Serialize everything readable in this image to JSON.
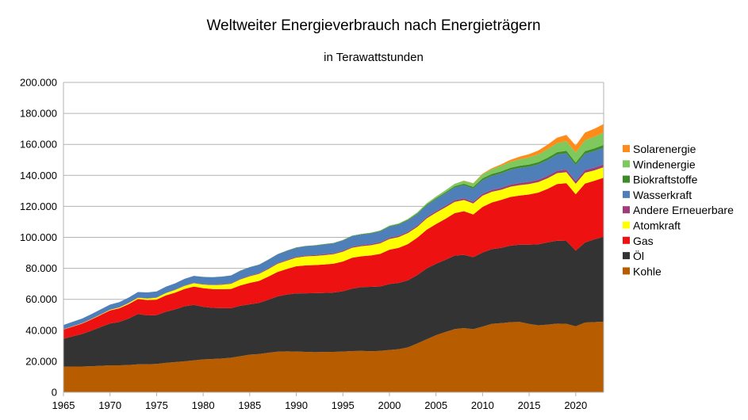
{
  "chart_data": {
    "type": "area",
    "stacked": true,
    "title": "Weltweiter Energieverbrauch nach Energieträgern",
    "subtitle": "in Terawattstunden",
    "xlabel": "",
    "ylabel": "",
    "xlim": [
      1965,
      2023
    ],
    "ylim": [
      0,
      200000
    ],
    "y_ticks": [
      "0",
      "20.000",
      "40.000",
      "60.000",
      "80.000",
      "100.000",
      "120.000",
      "140.000",
      "160.000",
      "180.000",
      "200.000"
    ],
    "x_ticks": [
      "1965",
      "1970",
      "1975",
      "1980",
      "1985",
      "1990",
      "1995",
      "2000",
      "2005",
      "2010",
      "2015",
      "2020"
    ],
    "x_tick_values": [
      1965,
      1970,
      1975,
      1980,
      1985,
      1990,
      1995,
      2000,
      2005,
      2010,
      2015,
      2020
    ],
    "grid": true,
    "legend_position": "right",
    "x": [
      1965,
      1966,
      1967,
      1968,
      1969,
      1970,
      1971,
      1972,
      1973,
      1974,
      1975,
      1976,
      1977,
      1978,
      1979,
      1980,
      1981,
      1982,
      1983,
      1984,
      1985,
      1986,
      1987,
      1988,
      1989,
      1990,
      1991,
      1992,
      1993,
      1994,
      1995,
      1996,
      1997,
      1998,
      1999,
      2000,
      2001,
      2002,
      2003,
      2004,
      2005,
      2006,
      2007,
      2008,
      2009,
      2010,
      2011,
      2012,
      2013,
      2014,
      2015,
      2016,
      2017,
      2018,
      2019,
      2020,
      2021,
      2022,
      2023
    ],
    "series": [
      {
        "name": "Kohle",
        "color": "#b85c00",
        "values": [
          16500,
          16600,
          16600,
          16800,
          17100,
          17400,
          17400,
          17600,
          18000,
          18100,
          18300,
          19000,
          19500,
          20000,
          20600,
          21200,
          21500,
          21800,
          22300,
          23300,
          24300,
          24700,
          25500,
          26200,
          26400,
          26300,
          26100,
          25900,
          26000,
          26100,
          26300,
          26600,
          26700,
          26500,
          26700,
          27300,
          27800,
          29000,
          31500,
          34200,
          36800,
          38900,
          40800,
          41400,
          40700,
          42400,
          44200,
          44600,
          45300,
          45400,
          44100,
          43200,
          43700,
          44300,
          44200,
          42600,
          45000,
          45300,
          45600
        ]
      },
      {
        "name": "Öl",
        "color": "#333333",
        "values": [
          18000,
          19500,
          21000,
          23000,
          25000,
          27000,
          28000,
          30000,
          32500,
          31500,
          31500,
          33000,
          34000,
          35500,
          35800,
          34000,
          33000,
          32500,
          32000,
          32500,
          32500,
          33000,
          34200,
          35700,
          36700,
          37500,
          37800,
          38100,
          38100,
          38300,
          38900,
          40300,
          41200,
          41500,
          41600,
          42600,
          42800,
          43300,
          44200,
          45700,
          46100,
          46600,
          47400,
          47300,
          46500,
          47800,
          48200,
          48600,
          49300,
          49900,
          51200,
          52300,
          53100,
          53500,
          53500,
          48800,
          51700,
          53400,
          54800
        ]
      },
      {
        "name": "Gas",
        "color": "#ee1111",
        "values": [
          6000,
          6300,
          6700,
          7200,
          7800,
          8400,
          8800,
          9300,
          9700,
          9900,
          10000,
          10500,
          10800,
          11200,
          11800,
          12000,
          12100,
          12200,
          12400,
          13200,
          13800,
          14200,
          15000,
          15800,
          16500,
          17500,
          18000,
          18100,
          18400,
          18600,
          19200,
          19900,
          19900,
          20300,
          21000,
          22100,
          22600,
          23400,
          24100,
          25000,
          25700,
          26400,
          27400,
          28200,
          27600,
          29400,
          30100,
          31000,
          31500,
          31700,
          32400,
          33400,
          34500,
          36600,
          37300,
          36400,
          38000,
          37800,
          38100
        ]
      },
      {
        "name": "Atomkraft",
        "color": "#ffff00",
        "values": [
          100,
          150,
          200,
          250,
          300,
          400,
          500,
          650,
          800,
          1000,
          1250,
          1500,
          1750,
          2000,
          2200,
          2300,
          2600,
          2900,
          3300,
          3800,
          4300,
          4500,
          4800,
          5200,
          5400,
          5600,
          5800,
          5900,
          6000,
          6100,
          6300,
          6500,
          6500,
          6600,
          6800,
          6900,
          7000,
          7100,
          7000,
          7300,
          7300,
          7400,
          7300,
          7200,
          7100,
          7300,
          6900,
          6500,
          6600,
          6700,
          6700,
          6800,
          6900,
          7000,
          7100,
          6800,
          7000,
          6700,
          6800
        ]
      },
      {
        "name": "Andere Erneuerbare",
        "color": "#a03c78",
        "values": [
          100,
          100,
          100,
          100,
          100,
          100,
          100,
          100,
          100,
          150,
          150,
          150,
          200,
          200,
          200,
          250,
          250,
          300,
          300,
          350,
          400,
          400,
          450,
          450,
          500,
          500,
          550,
          550,
          600,
          600,
          650,
          650,
          700,
          700,
          750,
          800,
          800,
          850,
          900,
          900,
          950,
          1000,
          1050,
          1100,
          1150,
          1200,
          1250,
          1300,
          1350,
          1400,
          1450,
          1500,
          1550,
          1600,
          1650,
          1700,
          1750,
          1800,
          1850
        ]
      },
      {
        "name": "Wasserkraft",
        "color": "#4f7fb8",
        "values": [
          2700,
          2850,
          3000,
          3100,
          3200,
          3300,
          3400,
          3500,
          3600,
          3800,
          3900,
          4000,
          4100,
          4300,
          4500,
          4700,
          4800,
          4900,
          5100,
          5300,
          5400,
          5500,
          5600,
          5700,
          5800,
          5900,
          6000,
          6100,
          6300,
          6400,
          6600,
          6800,
          6800,
          6900,
          7000,
          7200,
          7200,
          7300,
          7300,
          7500,
          7800,
          8000,
          8200,
          8400,
          8400,
          8800,
          9000,
          9300,
          9500,
          9700,
          9700,
          9900,
          10100,
          10400,
          10500,
          10400,
          10500,
          10600,
          10600
        ]
      },
      {
        "name": "Biokraftstoffe",
        "color": "#3c8a28",
        "values": [
          0,
          0,
          0,
          0,
          0,
          0,
          0,
          0,
          0,
          0,
          0,
          0,
          0,
          0,
          0,
          50,
          60,
          70,
          80,
          100,
          120,
          130,
          150,
          170,
          180,
          200,
          200,
          220,
          240,
          260,
          280,
          300,
          320,
          350,
          380,
          400,
          450,
          500,
          550,
          600,
          650,
          750,
          850,
          1000,
          1100,
          1200,
          1250,
          1300,
          1350,
          1400,
          1450,
          1500,
          1550,
          1600,
          1650,
          1600,
          1700,
          1800,
          1900
        ]
      },
      {
        "name": "Windenergie",
        "color": "#7ec85e",
        "values": [
          0,
          0,
          0,
          0,
          0,
          0,
          0,
          0,
          0,
          0,
          0,
          0,
          0,
          0,
          0,
          0,
          0,
          0,
          0,
          0,
          0,
          0,
          0,
          0,
          0,
          20,
          30,
          40,
          50,
          60,
          80,
          100,
          120,
          150,
          200,
          300,
          380,
          500,
          620,
          800,
          1000,
          1250,
          1500,
          1900,
          2250,
          2650,
          3100,
          3600,
          3850,
          4200,
          4600,
          5000,
          5500,
          5800,
          6200,
          6500,
          7000,
          7500,
          8000
        ]
      },
      {
        "name": "Solarenergie",
        "color": "#ff8c1a",
        "values": [
          0,
          0,
          0,
          0,
          0,
          0,
          0,
          0,
          0,
          0,
          0,
          0,
          0,
          0,
          0,
          0,
          0,
          0,
          0,
          0,
          0,
          0,
          0,
          0,
          0,
          0,
          0,
          0,
          0,
          0,
          0,
          0,
          0,
          0,
          0,
          0,
          0,
          0,
          0,
          0,
          20,
          40,
          60,
          120,
          200,
          350,
          600,
          950,
          1300,
          1700,
          2100,
          2500,
          3000,
          3500,
          4000,
          4500,
          5000,
          5200,
          5500
        ]
      }
    ]
  }
}
